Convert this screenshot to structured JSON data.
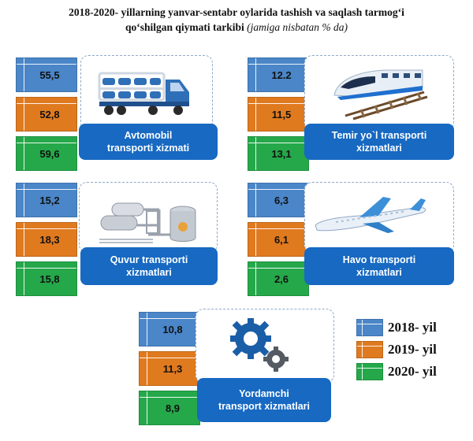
{
  "title": {
    "line1": "2018-2020- yillarning yanvar-sentabr oylarida tashish va saqlash tarmog‘i",
    "line2_bold": "qo‘shilgan qiymati tarkibi",
    "line2_italic": "(jamiga nisbatan % da)"
  },
  "colors": {
    "y2018": "#4a86c8",
    "y2019": "#e07a1f",
    "y2020": "#25a84a",
    "label_bg": "#1769c2"
  },
  "legend": [
    {
      "label": "2018- yil",
      "color": "#4a86c8"
    },
    {
      "label": "2019- yil",
      "color": "#e07a1f"
    },
    {
      "label": "2020- yil",
      "color": "#25a84a"
    }
  ],
  "chart_data": {
    "type": "table",
    "series_names": [
      "2018- yil",
      "2019- yil",
      "2020- yil"
    ],
    "categories": [
      {
        "name_line1": "Avtomobil",
        "name_line2": "transporti xizmati",
        "icon": "truck-car-carrier-icon",
        "values": [
          "55,5",
          "52,8",
          "59,6"
        ]
      },
      {
        "name_line1": "Temir yo`l transporti",
        "name_line2": "xizmatlari",
        "icon": "train-icon",
        "values": [
          "12.2",
          "11,5",
          "13,1"
        ]
      },
      {
        "name_line1": "Quvur transporti",
        "name_line2": "xizmatlari",
        "icon": "pipeline-tanks-icon",
        "values": [
          "15,2",
          "18,3",
          "15,8"
        ]
      },
      {
        "name_line1": "Havo transporti",
        "name_line2": "xizmatlari",
        "icon": "airplane-icon",
        "values": [
          "6,3",
          "6,1",
          "2,6"
        ]
      },
      {
        "name_line1": "Yordamchi",
        "name_line2": "transport xizmatlari",
        "icon": "gears-icon",
        "values": [
          "10,8",
          "11,3",
          "8,9"
        ]
      }
    ]
  }
}
